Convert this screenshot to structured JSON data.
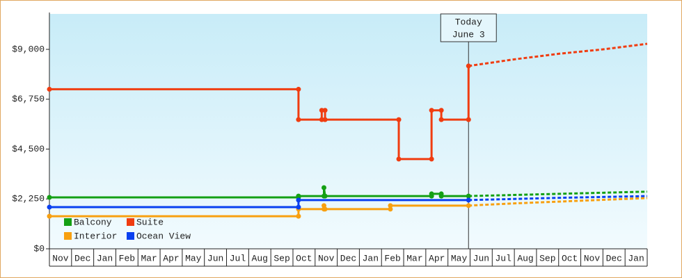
{
  "chart_data": {
    "type": "line",
    "categories": [
      "Nov",
      "Dec",
      "Jan",
      "Feb",
      "Mar",
      "Apr",
      "May",
      "Jun",
      "Jul",
      "Aug",
      "Sep",
      "Oct",
      "Nov",
      "Dec",
      "Jan",
      "Feb",
      "Mar",
      "Apr",
      "May",
      "Jun",
      "Jul",
      "Aug",
      "Sep",
      "Oct",
      "Nov",
      "Dec",
      "Jan"
    ],
    "xlim": [
      0,
      27
    ],
    "ylim": [
      0,
      10600
    ],
    "yticks": [
      {
        "value": 0,
        "label": "$0"
      },
      {
        "value": 2250,
        "label": "$2,250"
      },
      {
        "value": 4500,
        "label": "$4,500"
      },
      {
        "value": 6750,
        "label": "$6,750"
      },
      {
        "value": 9000,
        "label": "$9,000"
      }
    ],
    "annotation": {
      "lines": [
        "Today",
        "June 3"
      ],
      "x": 18.93
    },
    "legend": "bottom-left",
    "series": [
      {
        "name": "Balcony",
        "color": "#14a014",
        "x": [
          0,
          11.25,
          11.25,
          12.4,
          12.4,
          12.45,
          17.26,
          17.26,
          17.7,
          17.7,
          18.93
        ],
        "values": [
          2320,
          2320,
          2380,
          2380,
          2760,
          2380,
          2380,
          2480,
          2480,
          2380,
          2380
        ],
        "forecast": {
          "x": [
            18.93,
            21,
            23,
            25,
            27
          ],
          "values": [
            2380,
            2430,
            2480,
            2530,
            2580
          ]
        }
      },
      {
        "name": "Suite",
        "color": "#f03c10",
        "x": [
          0,
          11.25,
          11.25,
          12.3,
          12.3,
          12.45,
          12.45,
          15.78,
          15.78,
          17.26,
          17.26,
          17.7,
          17.7,
          18.93,
          18.93
        ],
        "values": [
          7200,
          7200,
          5830,
          5830,
          6250,
          6250,
          5830,
          5830,
          4050,
          4050,
          6250,
          6250,
          5830,
          5830,
          8250
        ],
        "forecast": {
          "x": [
            18.93,
            21,
            23,
            25,
            27
          ],
          "values": [
            8250,
            8550,
            8800,
            9000,
            9250
          ]
        }
      },
      {
        "name": "Interior",
        "color": "#f8a010",
        "x": [
          0,
          11.25,
          11.25,
          12.4,
          12.4,
          12.45,
          15.4,
          15.4,
          18.93
        ],
        "values": [
          1470,
          1470,
          1790,
          1790,
          1950,
          1790,
          1790,
          1950,
          1950
        ],
        "forecast": {
          "x": [
            18.93,
            21,
            23,
            25,
            27
          ],
          "values": [
            1950,
            2050,
            2130,
            2210,
            2290
          ]
        }
      },
      {
        "name": "Ocean View",
        "color": "#0a40f0",
        "x": [
          0,
          11.25,
          11.25,
          18.93
        ],
        "values": [
          1880,
          1880,
          2200,
          2200
        ],
        "forecast": {
          "x": [
            18.93,
            21,
            23,
            25,
            27
          ],
          "values": [
            2200,
            2250,
            2300,
            2340,
            2380
          ]
        }
      }
    ]
  }
}
